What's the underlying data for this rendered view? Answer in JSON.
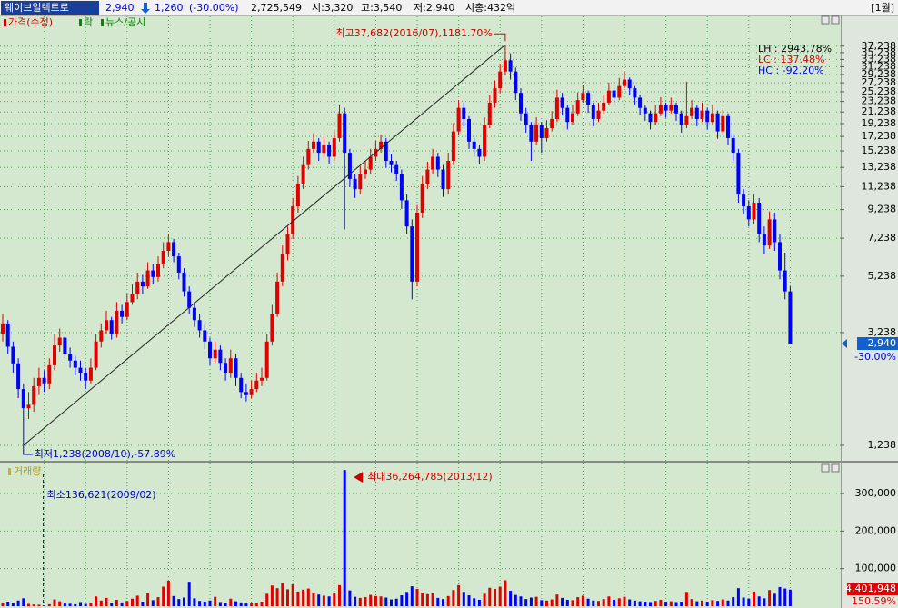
{
  "header": {
    "name": "웨이브일렉트로",
    "price": "2,940",
    "change": "1,260",
    "change_pct": "(-30.00%)",
    "volume": "2,725,549",
    "open": "시:3,320",
    "high": "고:3,540",
    "low": "저:2,940",
    "cap": "시총:432억",
    "period": "[1월]"
  },
  "chart_data": [
    {
      "type": "candlestick",
      "legend": [
        "가격(수정)",
        "락",
        "뉴스/공시"
      ],
      "log_scale": true,
      "grid": true,
      "up_color": "#e00000",
      "down_color": "#0000ff",
      "ylim": [
        1085,
        48000
      ],
      "yticks": [
        {
          "value": 1238,
          "label": "1,238"
        },
        {
          "value": 3238,
          "label": "3,238"
        },
        {
          "value": 5238,
          "label": "5,238"
        },
        {
          "value": 7238,
          "label": "7,238"
        },
        {
          "value": 9238,
          "label": "9,238"
        },
        {
          "value": 11238,
          "label": "11,238"
        },
        {
          "value": 13238,
          "label": "13,238"
        },
        {
          "value": 15238,
          "label": "15,238"
        },
        {
          "value": 17238,
          "label": "17,238"
        },
        {
          "value": 19238,
          "label": "19,238"
        },
        {
          "value": 21238,
          "label": "21,238"
        },
        {
          "value": 23238,
          "label": "23,238"
        },
        {
          "value": 25238,
          "label": "25,238"
        },
        {
          "value": 27238,
          "label": "27,238"
        },
        {
          "value": 29238,
          "label": "29,238"
        },
        {
          "value": 31238,
          "label": "31,238"
        },
        {
          "value": 33238,
          "label": "33,238"
        },
        {
          "value": 35238,
          "label": "35,238"
        },
        {
          "value": 37238,
          "label": "37,238"
        }
      ],
      "annotations": {
        "high": "최고37,682(2016/07),1181.70%",
        "low": "최저1,238(2008/10),-57.89%"
      },
      "stats": [
        "LH : 2943.78%",
        "LC : 137.48%",
        "HC : -92.20%"
      ],
      "last_label": "2,940",
      "last_pct": "-30.00%",
      "candles": [
        [
          3200,
          3800,
          3000,
          3500
        ],
        [
          3500,
          3600,
          2700,
          2870
        ],
        [
          2870,
          3000,
          2300,
          2490
        ],
        [
          2490,
          2600,
          1850,
          2000
        ],
        [
          2000,
          2100,
          1238,
          1700
        ],
        [
          1700,
          1950,
          1550,
          1750
        ],
        [
          1750,
          2200,
          1650,
          2050
        ],
        [
          2050,
          2400,
          1900,
          2200
        ],
        [
          2200,
          2350,
          1950,
          2100
        ],
        [
          2100,
          2600,
          2000,
          2450
        ],
        [
          2450,
          3200,
          2350,
          2900
        ],
        [
          2900,
          3350,
          2750,
          3100
        ],
        [
          3100,
          3150,
          2600,
          2700
        ],
        [
          2700,
          2850,
          2400,
          2550
        ],
        [
          2550,
          2650,
          2250,
          2400
        ],
        [
          2400,
          2550,
          2150,
          2300
        ],
        [
          2300,
          2400,
          2000,
          2150
        ],
        [
          2150,
          2600,
          2100,
          2400
        ],
        [
          2400,
          3200,
          2350,
          3000
        ],
        [
          3000,
          3500,
          2850,
          3300
        ],
        [
          3300,
          3900,
          3200,
          3600
        ],
        [
          3600,
          3700,
          3050,
          3200
        ],
        [
          3200,
          4200,
          3100,
          3900
        ],
        [
          3900,
          4100,
          3500,
          3700
        ],
        [
          3700,
          4500,
          3600,
          4200
        ],
        [
          4200,
          4900,
          4100,
          4500
        ],
        [
          4500,
          5400,
          4300,
          5000
        ],
        [
          5000,
          5300,
          4500,
          4800
        ],
        [
          4800,
          5900,
          4700,
          5500
        ],
        [
          5500,
          5800,
          4900,
          5200
        ],
        [
          5200,
          6200,
          5000,
          5800
        ],
        [
          5800,
          7000,
          5600,
          6500
        ],
        [
          6500,
          7500,
          6200,
          7000
        ],
        [
          7000,
          7200,
          5900,
          6200
        ],
        [
          6200,
          6400,
          5100,
          5400
        ],
        [
          5400,
          5600,
          4400,
          4600
        ],
        [
          4600,
          4800,
          3800,
          4000
        ],
        [
          4000,
          4200,
          3400,
          3600
        ],
        [
          3600,
          3800,
          3100,
          3300
        ],
        [
          3300,
          3500,
          2800,
          3000
        ],
        [
          3000,
          3100,
          2450,
          2600
        ],
        [
          2600,
          3000,
          2500,
          2800
        ],
        [
          2800,
          2900,
          2350,
          2500
        ],
        [
          2500,
          2600,
          2150,
          2300
        ],
        [
          2300,
          2800,
          2200,
          2600
        ],
        [
          2600,
          2700,
          2050,
          2200
        ],
        [
          2200,
          2300,
          1850,
          1950
        ],
        [
          1950,
          2100,
          1800,
          1900
        ],
        [
          1900,
          2150,
          1850,
          2000
        ],
        [
          2000,
          2300,
          1950,
          2150
        ],
        [
          2150,
          2400,
          2050,
          2200
        ],
        [
          2200,
          3200,
          2150,
          3000
        ],
        [
          3000,
          4100,
          2900,
          3800
        ],
        [
          3800,
          5400,
          3700,
          5000
        ],
        [
          5000,
          6800,
          4800,
          6300
        ],
        [
          6300,
          8000,
          6000,
          7500
        ],
        [
          7500,
          10200,
          7200,
          9500
        ],
        [
          9500,
          12300,
          9000,
          11500
        ],
        [
          11500,
          14500,
          11000,
          13500
        ],
        [
          13500,
          16600,
          13000,
          15500
        ],
        [
          15500,
          17700,
          15000,
          16500
        ],
        [
          16500,
          17000,
          14000,
          15000
        ],
        [
          15000,
          17200,
          14500,
          16000
        ],
        [
          16000,
          16500,
          13600,
          14500
        ],
        [
          14500,
          18200,
          14000,
          17000
        ],
        [
          17000,
          22500,
          16500,
          21000
        ],
        [
          21000,
          22000,
          7800,
          15000
        ],
        [
          15000,
          15500,
          11200,
          12000
        ],
        [
          12000,
          12500,
          10200,
          11000
        ],
        [
          11000,
          13400,
          10500,
          12500
        ],
        [
          12500,
          14000,
          12000,
          13000
        ],
        [
          13000,
          15500,
          12500,
          14500
        ],
        [
          14500,
          16600,
          14000,
          15500
        ],
        [
          15500,
          17500,
          15000,
          16500
        ],
        [
          16500,
          17000,
          13200,
          14000
        ],
        [
          14000,
          14800,
          12700,
          13500
        ],
        [
          13500,
          14000,
          11800,
          12500
        ],
        [
          12500,
          13000,
          9300,
          10000
        ],
        [
          10000,
          10500,
          7500,
          8000
        ],
        [
          8000,
          8500,
          4300,
          5000
        ],
        [
          5000,
          9600,
          4800,
          9000
        ],
        [
          9000,
          12300,
          8600,
          11500
        ],
        [
          11500,
          13900,
          11000,
          13000
        ],
        [
          13000,
          15500,
          12500,
          14500
        ],
        [
          14500,
          15000,
          12200,
          13000
        ],
        [
          13000,
          13500,
          10300,
          11000
        ],
        [
          11000,
          15000,
          10500,
          14000
        ],
        [
          14000,
          19300,
          13500,
          18000
        ],
        [
          18000,
          23500,
          17500,
          22000
        ],
        [
          22000,
          23000,
          18800,
          20000
        ],
        [
          20000,
          20500,
          15500,
          16500
        ],
        [
          16500,
          17000,
          14500,
          15500
        ],
        [
          15500,
          16000,
          13600,
          14500
        ],
        [
          14500,
          20300,
          14000,
          19000
        ],
        [
          19000,
          24600,
          18500,
          23000
        ],
        [
          23000,
          27800,
          22000,
          26000
        ],
        [
          26000,
          32000,
          25000,
          30000
        ],
        [
          30000,
          37682,
          29000,
          33000
        ],
        [
          33000,
          35000,
          28000,
          30000
        ],
        [
          30000,
          31000,
          23500,
          25000
        ],
        [
          25000,
          26000,
          19700,
          21000
        ],
        [
          21000,
          22000,
          17800,
          19000
        ],
        [
          19000,
          19500,
          14000,
          16500
        ],
        [
          16500,
          20300,
          16000,
          19000
        ],
        [
          19000,
          19500,
          15000,
          17000
        ],
        [
          17000,
          19800,
          16500,
          18500
        ],
        [
          18500,
          21400,
          18000,
          20000
        ],
        [
          20000,
          25700,
          19500,
          24000
        ],
        [
          24000,
          25000,
          20600,
          22000
        ],
        [
          22000,
          22500,
          18300,
          19500
        ],
        [
          19500,
          22500,
          19000,
          21000
        ],
        [
          21000,
          25100,
          20500,
          23500
        ],
        [
          23500,
          26700,
          23000,
          25000
        ],
        [
          25000,
          25500,
          21100,
          22500
        ],
        [
          22500,
          23000,
          18800,
          20000
        ],
        [
          20000,
          23000,
          19500,
          21500
        ],
        [
          21500,
          24600,
          21000,
          23000
        ],
        [
          23000,
          27300,
          22500,
          25500
        ],
        [
          25500,
          26000,
          22600,
          24000
        ],
        [
          24000,
          28400,
          23500,
          26500
        ],
        [
          26500,
          30000,
          26000,
          28000
        ],
        [
          28000,
          28500,
          24500,
          26000
        ],
        [
          26000,
          26500,
          22600,
          24000
        ],
        [
          24000,
          24500,
          20700,
          22000
        ],
        [
          22000,
          22500,
          19700,
          21000
        ],
        [
          21000,
          21500,
          18300,
          19500
        ],
        [
          19500,
          22500,
          19000,
          21000
        ],
        [
          21000,
          24100,
          20500,
          22500
        ],
        [
          22500,
          23000,
          20200,
          21500
        ],
        [
          21500,
          24000,
          21000,
          22500
        ],
        [
          22500,
          23000,
          19700,
          21000
        ],
        [
          21000,
          21500,
          17800,
          19000
        ],
        [
          19000,
          27500,
          18500,
          20500
        ],
        [
          20500,
          23500,
          20000,
          22000
        ],
        [
          22000,
          22500,
          18800,
          20000
        ],
        [
          20000,
          23000,
          19500,
          21500
        ],
        [
          21500,
          22000,
          18300,
          19500
        ],
        [
          19500,
          22500,
          19000,
          21000
        ],
        [
          21000,
          21500,
          16900,
          18000
        ],
        [
          18000,
          21900,
          17500,
          20500
        ],
        [
          20500,
          21000,
          16000,
          17000
        ],
        [
          17000,
          17500,
          14000,
          15000
        ],
        [
          15000,
          15500,
          9800,
          10500
        ],
        [
          10500,
          11000,
          8900,
          9500
        ],
        [
          9500,
          10000,
          8000,
          8500
        ],
        [
          8500,
          10500,
          8200,
          9800
        ],
        [
          9800,
          10200,
          7000,
          7500
        ],
        [
          7500,
          8000,
          6300,
          6800
        ],
        [
          6800,
          9100,
          6600,
          8500
        ],
        [
          8500,
          9000,
          6500,
          7000
        ],
        [
          7000,
          7500,
          5100,
          5500
        ],
        [
          5500,
          6400,
          4300,
          4600
        ],
        [
          4600,
          4800,
          2940,
          2940
        ]
      ]
    },
    {
      "type": "volume",
      "title": "거래량",
      "ylim": [
        0,
        38000000
      ],
      "yticks": [
        {
          "value": 10000000,
          "label": "100,000"
        },
        {
          "value": 20000000,
          "label": "200,000"
        },
        {
          "value": 30000000,
          "label": "300,000"
        }
      ],
      "annotations": {
        "min": "최소136,621(2009/02)",
        "max": "최대36,264,785(2013/12)"
      },
      "last_label": "4,401,948",
      "last_pct": "150.59%",
      "values": [
        900000,
        1200000,
        800000,
        1500000,
        2100000,
        600000,
        450000,
        380000,
        136621,
        520000,
        1800000,
        1300000,
        700000,
        650000,
        500000,
        1100000,
        600000,
        900000,
        2600000,
        1500000,
        2200000,
        900000,
        1700000,
        1000000,
        1400000,
        2000000,
        2800000,
        1200000,
        3500000,
        1600000,
        2400000,
        5200000,
        6800000,
        2700000,
        1900000,
        2300000,
        6500000,
        2100000,
        1400000,
        1200000,
        1500000,
        2500000,
        1100000,
        900000,
        2000000,
        1300000,
        1000000,
        700000,
        800000,
        900000,
        1200000,
        3300000,
        5500000,
        4800000,
        6200000,
        4500000,
        5800000,
        3900000,
        4400000,
        4700000,
        3600000,
        3100000,
        2800000,
        2600000,
        3400000,
        5600000,
        36264785,
        4200000,
        2500000,
        2200000,
        2400000,
        3000000,
        2700000,
        2600000,
        2300000,
        1800000,
        2000000,
        2900000,
        3800000,
        5300000,
        4600000,
        3600000,
        3200000,
        3400000,
        2200000,
        1900000,
        2700000,
        4300000,
        5600000,
        3800000,
        2900000,
        2100000,
        1700000,
        3300000,
        4900000,
        4600000,
        5200000,
        6900000,
        4100000,
        3000000,
        2600000,
        1900000,
        2300000,
        2500000,
        1600000,
        1500000,
        1800000,
        3100000,
        2200000,
        1700000,
        1600000,
        2400000,
        2800000,
        2000000,
        1500000,
        1400000,
        1900000,
        2600000,
        1700000,
        2100000,
        2500000,
        1800000,
        1500000,
        1300000,
        1200000,
        1100000,
        1400000,
        1700000,
        1200000,
        1300000,
        1100000,
        1200000,
        3800000,
        1900000,
        1300000,
        1500000,
        1200000,
        1600000,
        1400000,
        1800000,
        1500000,
        2400000,
        4800000,
        2300000,
        2000000,
        3900000,
        2600000,
        2100000,
        4300000,
        3300000,
        5100000,
        4700000,
        4401948
      ]
    }
  ]
}
